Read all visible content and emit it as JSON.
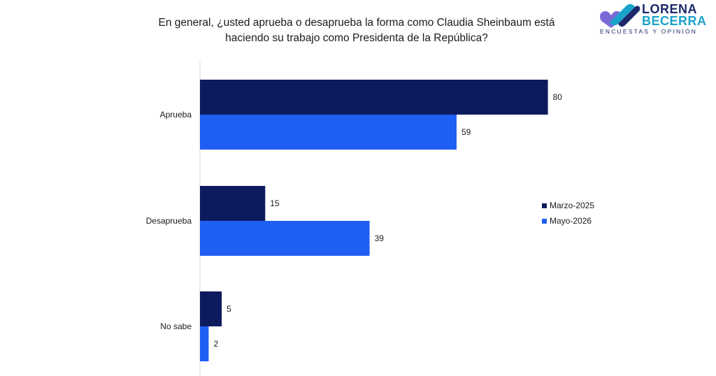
{
  "title_line1": "En general, ¿usted aprueba o desaprueba la forma como Claudia Sheinbaum está",
  "title_line2": "haciendo su trabajo como Presidenta de la República?",
  "logo": {
    "line1": "LORENA",
    "line2": "BECERRA",
    "tagline": "ENCUESTAS Y OPINIÓN"
  },
  "colors": {
    "series1": "#0d1b5e",
    "series2": "#1f5ef2"
  },
  "chart_data": {
    "type": "bar",
    "orientation": "horizontal",
    "categories": [
      "Aprueba",
      "Desaprueba",
      "No sabe"
    ],
    "series": [
      {
        "name": "Marzo-2025",
        "values": [
          80,
          15,
          5
        ]
      },
      {
        "name": "Mayo-2026",
        "values": [
          59,
          39,
          2
        ]
      }
    ],
    "xlim": [
      0,
      100
    ],
    "grid": false,
    "legend_position": "right"
  }
}
